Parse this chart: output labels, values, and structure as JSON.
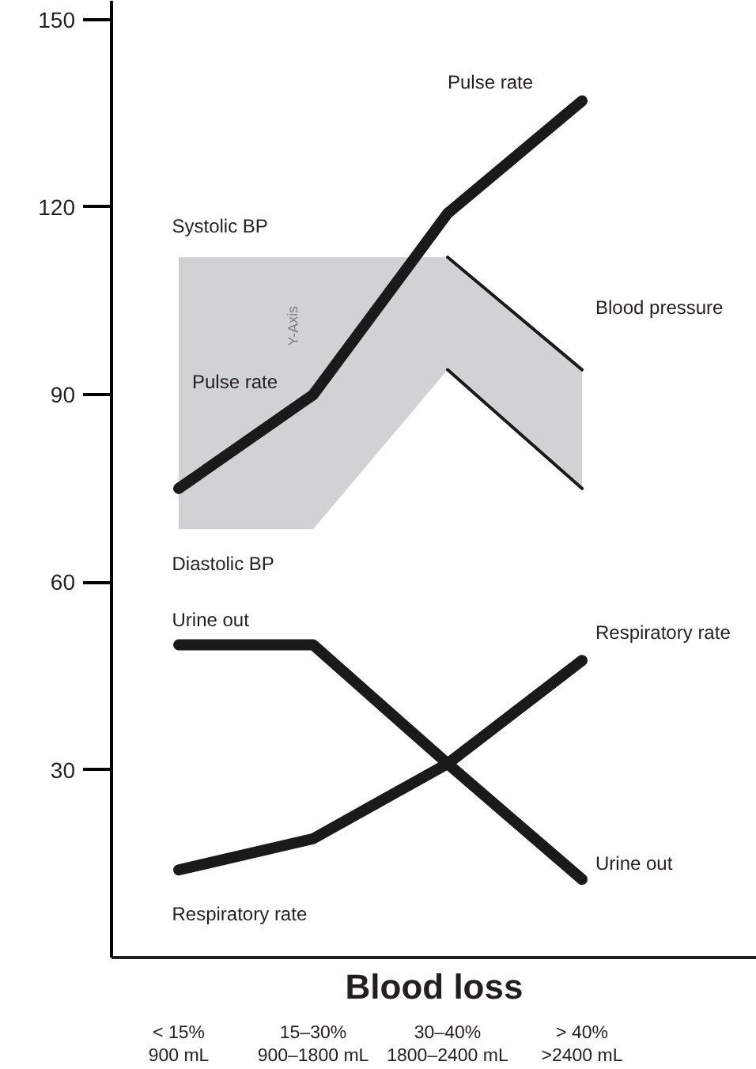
{
  "chart_data": {
    "type": "line",
    "xlabel": "Blood loss",
    "categories": [
      "< 15%\n900 mL",
      "15–30%\n900–1800 mL",
      "30–40%\n1800–2400 mL",
      "> 40%\n>2400 mL"
    ],
    "ylim": [
      0,
      153
    ],
    "yticks": [
      30,
      60,
      90,
      120,
      150
    ],
    "grid": false,
    "marker": "none",
    "line_style": "solid",
    "series": [
      {
        "color": "#1a1a1a",
        "values": [
          75,
          90,
          119,
          137
        ]
      },
      {
        "color": "#1a1a1a",
        "values": [
          50,
          50,
          31,
          12.5
        ]
      },
      {
        "color": "#1a1a1a",
        "values": [
          14,
          19,
          31,
          47.5
        ]
      },
      {
        "color": "#1a1a1a",
        "values": [
          null,
          null,
          112,
          94
        ],
        "lower": [
          68.5,
          68.5,
          94,
          75
        ],
        "upper": [
          112,
          112,
          112,
          94
        ]
      },
      {
        "color": "#1a1a1a",
        "values": [
          null,
          null,
          94,
          75
        ]
      }
    ],
    "annotations": [
      "Pulse rate",
      "Systolic BP",
      "Y-Axis",
      "Blood pressure",
      "Pulse rate",
      "Diastolic BP",
      "Urine out",
      "Respiratory rate",
      "Urine out",
      "Respiratory rate"
    ]
  }
}
